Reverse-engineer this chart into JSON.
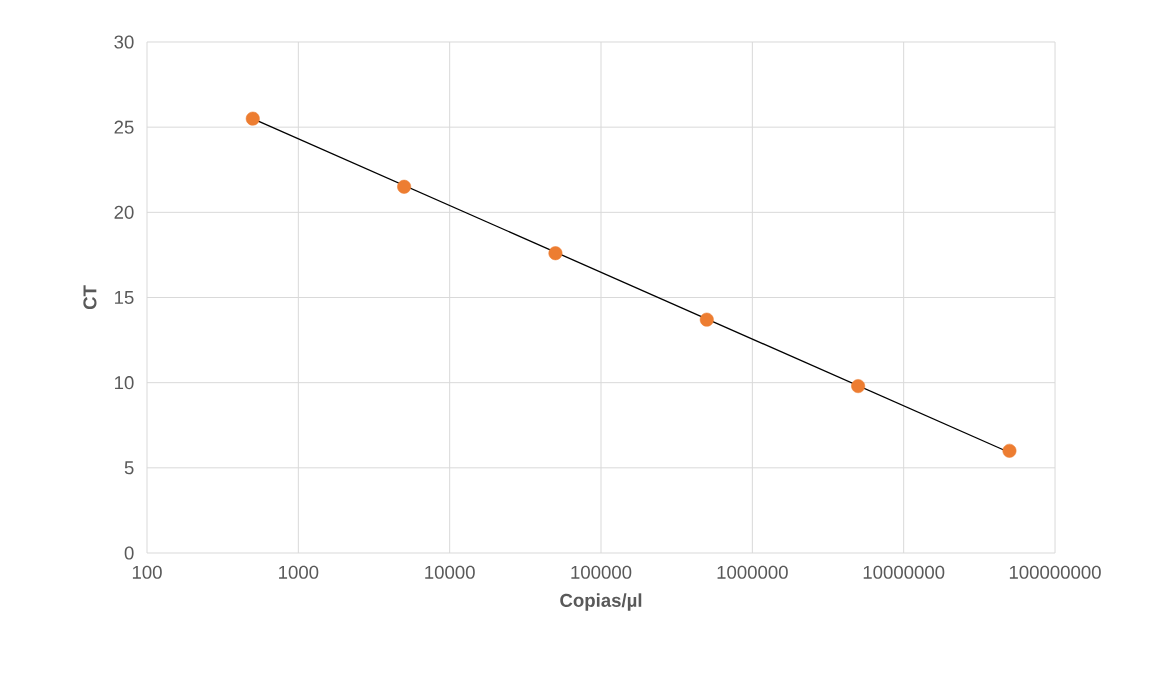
{
  "chart_data": {
    "type": "scatter",
    "xlabel": "Copias/µl",
    "ylabel": "CT",
    "log": "x",
    "grid": true,
    "xlim": [
      100,
      100000000
    ],
    "xticks": [
      100,
      1000,
      10000,
      100000,
      1000000,
      10000000,
      100000000
    ],
    "ylim": [
      0,
      30
    ],
    "yticks": [
      0,
      5,
      10,
      15,
      20,
      25,
      30
    ],
    "series": [
      {
        "color": "#ed7d31",
        "marker": "circle",
        "x": [
          500,
          5000,
          50000,
          500000,
          5000000,
          50000000
        ],
        "values": [
          25.5,
          21.5,
          17.6,
          13.7,
          9.8,
          6.0
        ]
      },
      {
        "type": "line",
        "marker": "none",
        "color": "#000000",
        "x": [
          500,
          50000000
        ],
        "values": [
          25.5,
          5.9
        ]
      }
    ]
  }
}
